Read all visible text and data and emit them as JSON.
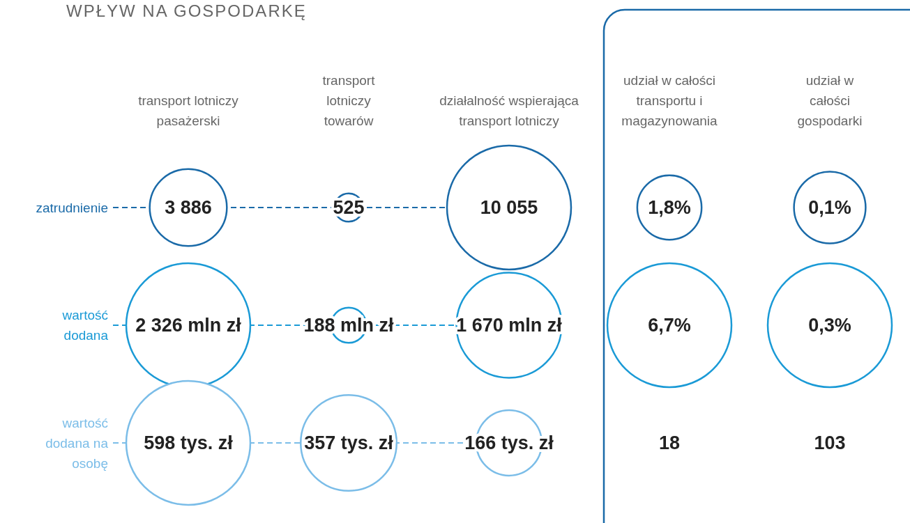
{
  "chart_data": {
    "type": "other",
    "title": "WPŁYW NA GOSPODARKĘ",
    "categories": [
      "transport lotniczy pasażerski",
      "transport lotniczy towarów",
      "działalność wspierająca transport lotniczy",
      "udział w całości transportu i magazynowania",
      "udział w całości gospodarki"
    ],
    "series": [
      {
        "name": "zatrudnienie",
        "color": "#1a6aa8",
        "values": [
          3886,
          525,
          10055,
          1.8,
          0.1
        ],
        "value_labels": [
          "3 886",
          "525",
          "10 055",
          "1,8%",
          "0,1%"
        ]
      },
      {
        "name": "wartość dodana",
        "color": "#1a9ad6",
        "values": [
          2326,
          188,
          1670,
          6.7,
          0.3
        ],
        "value_labels": [
          "2 326 mln zł",
          "188 mln zł",
          "1 670 mln zł",
          "6,7%",
          "0,3%"
        ]
      },
      {
        "name": "wartość dodana na osobę",
        "color": "#7bbde8",
        "colors": [
          "#7bbde8",
          "#7bbde8",
          "#7bbde8",
          null,
          null
        ],
        "values": [
          598,
          357,
          166,
          18,
          103
        ],
        "value_labels": [
          "598 tys. zł",
          "357 tys. zł",
          "166 tys. zł",
          "18",
          "103"
        ]
      }
    ]
  }
}
